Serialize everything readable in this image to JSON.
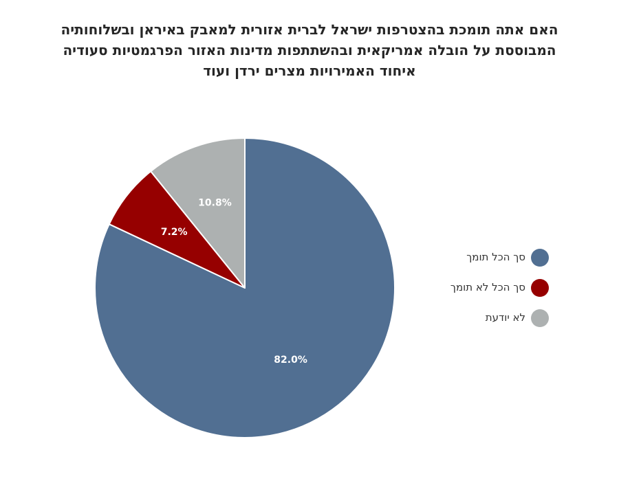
{
  "chart_data": {
    "type": "pie",
    "title": "האם אתה תומך בהצטרפות ישראל לברית אזורית למאבק באיראן ובשלוחותיה המבוססת על הובלה אמריקאית ובהשתתפות מדינות האזור הפרגמטיות סעודיה איחוד האמירויות מצרים ירדן ועוד",
    "title_lines": [
      "האם אתה תומכת בהצטרפות ישראל לברית אזורית למאבק באיראן ובשלוחותיה",
      "המבוססת על הובלה אמריקאית ובהשתתפות מדינות האזור הפרגמטיות סעודיה",
      "איחוד האמירויות מצרים ירדן ועוד"
    ],
    "slices": [
      {
        "label": "סך הכל תומך",
        "value": 82.0,
        "display": "82.0%",
        "color": "#516f92"
      },
      {
        "label": "סך הכל לא תומך",
        "value": 7.2,
        "display": "7.2%",
        "color": "#960000"
      },
      {
        "label": "לא יודעת",
        "value": 10.8,
        "display": "10.8%",
        "color": "#adb1b1"
      }
    ],
    "start_angle": "12 o'clock",
    "direction": "clockwise",
    "legend_position": "right"
  }
}
